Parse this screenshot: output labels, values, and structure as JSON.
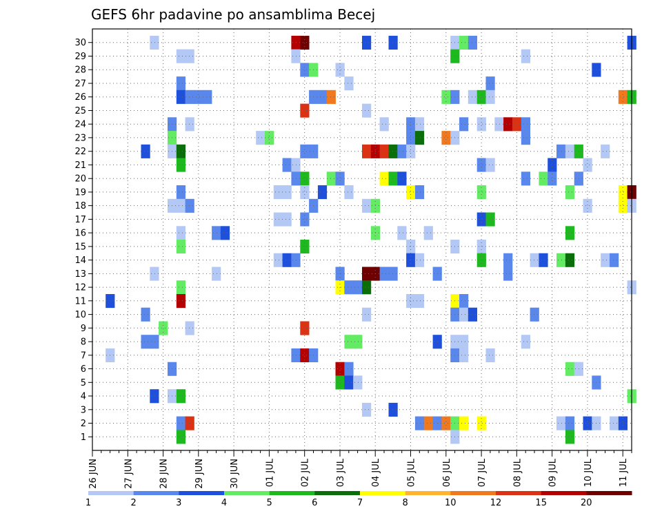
{
  "chart_data": {
    "type": "heatmap",
    "title": "GEFS 6hr padavine po ansamblima Becej",
    "xlabel": "",
    "ylabel": "",
    "x_start": "26 JUN",
    "x_step_hours": 6,
    "x_steps": 61,
    "x_tick_labels": [
      "26 JUN",
      "27 JUN",
      "28 JUN",
      "29 JUN",
      "30 JUN",
      "01 JUL",
      "02 JUL",
      "03 JUL",
      "04 JUL",
      "05 JUL",
      "06 JUL",
      "07 JUL",
      "08 JUL",
      "09 JUL",
      "10 JUL",
      "11 JUL"
    ],
    "y_range": [
      0,
      30
    ],
    "y_tick_labels": [
      "1",
      "2",
      "3",
      "4",
      "5",
      "6",
      "7",
      "8",
      "9",
      "10",
      "11",
      "12",
      "13",
      "14",
      "15",
      "16",
      "17",
      "18",
      "19",
      "20",
      "21",
      "22",
      "23",
      "24",
      "25",
      "26",
      "27",
      "28",
      "29",
      "30"
    ],
    "grid": true,
    "legend_position": "bottom",
    "color_scale": {
      "breaks": [
        "1",
        "2",
        "3",
        "4",
        "5",
        "6",
        "7",
        "8",
        "10",
        "12",
        "15",
        "20"
      ],
      "colors": [
        "#b4c8f5",
        "#5a87eb",
        "#1e50dc",
        "#64eb64",
        "#1eb91e",
        "#0a6e0a",
        "#ffff00",
        "#ffb432",
        "#f0781e",
        "#dc3214",
        "#b40000",
        "#6e0000"
      ]
    },
    "cells": [
      [
        30,
        7,
        1
      ],
      [
        30,
        23,
        11
      ],
      [
        30,
        24,
        12
      ],
      [
        30,
        31,
        3
      ],
      [
        30,
        34,
        3
      ],
      [
        30,
        41,
        1
      ],
      [
        30,
        42,
        4
      ],
      [
        30,
        43,
        2
      ],
      [
        30,
        61,
        3
      ],
      [
        29,
        10,
        1
      ],
      [
        29,
        11,
        1
      ],
      [
        29,
        23,
        1
      ],
      [
        29,
        41,
        5
      ],
      [
        29,
        49,
        1
      ],
      [
        28,
        24,
        2
      ],
      [
        28,
        25,
        4
      ],
      [
        28,
        28,
        1
      ],
      [
        28,
        57,
        3
      ],
      [
        27,
        10,
        2
      ],
      [
        27,
        29,
        1
      ],
      [
        27,
        45,
        2
      ],
      [
        26,
        10,
        3
      ],
      [
        26,
        11,
        2
      ],
      [
        26,
        12,
        2
      ],
      [
        26,
        13,
        2
      ],
      [
        26,
        25,
        2
      ],
      [
        26,
        26,
        2
      ],
      [
        26,
        27,
        9
      ],
      [
        26,
        40,
        4
      ],
      [
        26,
        41,
        2
      ],
      [
        26,
        43,
        1
      ],
      [
        26,
        44,
        5
      ],
      [
        26,
        45,
        1
      ],
      [
        26,
        60,
        9
      ],
      [
        26,
        61,
        5
      ],
      [
        25,
        24,
        10
      ],
      [
        25,
        31,
        1
      ],
      [
        24,
        9,
        2
      ],
      [
        24,
        11,
        1
      ],
      [
        24,
        33,
        1
      ],
      [
        24,
        36,
        2
      ],
      [
        24,
        37,
        1
      ],
      [
        24,
        42,
        2
      ],
      [
        24,
        44,
        1
      ],
      [
        24,
        46,
        1
      ],
      [
        24,
        47,
        11
      ],
      [
        24,
        48,
        10
      ],
      [
        24,
        49,
        2
      ],
      [
        23,
        9,
        4
      ],
      [
        23,
        19,
        1
      ],
      [
        23,
        20,
        4
      ],
      [
        23,
        36,
        2
      ],
      [
        23,
        37,
        6
      ],
      [
        23,
        40,
        9
      ],
      [
        23,
        41,
        1
      ],
      [
        23,
        49,
        2
      ],
      [
        22,
        6,
        3
      ],
      [
        22,
        9,
        1
      ],
      [
        22,
        10,
        6
      ],
      [
        22,
        24,
        2
      ],
      [
        22,
        25,
        2
      ],
      [
        22,
        31,
        10
      ],
      [
        22,
        32,
        11
      ],
      [
        22,
        33,
        10
      ],
      [
        22,
        34,
        6
      ],
      [
        22,
        35,
        2
      ],
      [
        22,
        36,
        1
      ],
      [
        22,
        53,
        2
      ],
      [
        22,
        54,
        1
      ],
      [
        22,
        55,
        5
      ],
      [
        22,
        58,
        1
      ],
      [
        21,
        10,
        5
      ],
      [
        21,
        22,
        2
      ],
      [
        21,
        23,
        1
      ],
      [
        21,
        44,
        2
      ],
      [
        21,
        45,
        1
      ],
      [
        21,
        52,
        3
      ],
      [
        21,
        56,
        1
      ],
      [
        20,
        23,
        2
      ],
      [
        20,
        24,
        5
      ],
      [
        20,
        27,
        4
      ],
      [
        20,
        28,
        2
      ],
      [
        20,
        33,
        7
      ],
      [
        20,
        34,
        5
      ],
      [
        20,
        35,
        3
      ],
      [
        20,
        49,
        2
      ],
      [
        20,
        51,
        4
      ],
      [
        20,
        52,
        2
      ],
      [
        20,
        55,
        2
      ],
      [
        19,
        10,
        2
      ],
      [
        19,
        21,
        1
      ],
      [
        19,
        22,
        1
      ],
      [
        19,
        24,
        1
      ],
      [
        19,
        26,
        3
      ],
      [
        19,
        29,
        1
      ],
      [
        19,
        36,
        7
      ],
      [
        19,
        37,
        2
      ],
      [
        19,
        44,
        4
      ],
      [
        19,
        54,
        4
      ],
      [
        19,
        60,
        7
      ],
      [
        19,
        61,
        12
      ],
      [
        18,
        9,
        1
      ],
      [
        18,
        10,
        1
      ],
      [
        18,
        11,
        2
      ],
      [
        18,
        25,
        2
      ],
      [
        18,
        31,
        1
      ],
      [
        18,
        32,
        4
      ],
      [
        18,
        56,
        1
      ],
      [
        18,
        60,
        7
      ],
      [
        18,
        61,
        1
      ],
      [
        17,
        21,
        1
      ],
      [
        17,
        22,
        1
      ],
      [
        17,
        24,
        2
      ],
      [
        17,
        44,
        3
      ],
      [
        17,
        45,
        5
      ],
      [
        16,
        10,
        1
      ],
      [
        16,
        14,
        2
      ],
      [
        16,
        15,
        3
      ],
      [
        16,
        32,
        4
      ],
      [
        16,
        35,
        1
      ],
      [
        16,
        38,
        1
      ],
      [
        16,
        54,
        5
      ],
      [
        15,
        10,
        4
      ],
      [
        15,
        24,
        5
      ],
      [
        15,
        36,
        1
      ],
      [
        15,
        41,
        1
      ],
      [
        15,
        44,
        1
      ],
      [
        14,
        21,
        1
      ],
      [
        14,
        22,
        3
      ],
      [
        14,
        23,
        2
      ],
      [
        14,
        36,
        3
      ],
      [
        14,
        37,
        1
      ],
      [
        14,
        44,
        5
      ],
      [
        14,
        47,
        2
      ],
      [
        14,
        50,
        1
      ],
      [
        14,
        51,
        3
      ],
      [
        14,
        53,
        4
      ],
      [
        14,
        54,
        6
      ],
      [
        14,
        58,
        1
      ],
      [
        14,
        59,
        2
      ],
      [
        13,
        7,
        1
      ],
      [
        13,
        14,
        1
      ],
      [
        13,
        28,
        2
      ],
      [
        13,
        31,
        12
      ],
      [
        13,
        32,
        12
      ],
      [
        13,
        33,
        2
      ],
      [
        13,
        34,
        2
      ],
      [
        13,
        39,
        2
      ],
      [
        13,
        47,
        2
      ],
      [
        12,
        10,
        4
      ],
      [
        12,
        28,
        7
      ],
      [
        12,
        29,
        2
      ],
      [
        12,
        30,
        2
      ],
      [
        12,
        31,
        6
      ],
      [
        12,
        61,
        1
      ],
      [
        11,
        2,
        3
      ],
      [
        11,
        10,
        11
      ],
      [
        11,
        36,
        1
      ],
      [
        11,
        37,
        1
      ],
      [
        11,
        41,
        7
      ],
      [
        11,
        42,
        2
      ],
      [
        10,
        6,
        2
      ],
      [
        10,
        31,
        1
      ],
      [
        10,
        41,
        2
      ],
      [
        10,
        42,
        1
      ],
      [
        10,
        43,
        3
      ],
      [
        10,
        50,
        2
      ],
      [
        9,
        8,
        4
      ],
      [
        9,
        11,
        1
      ],
      [
        9,
        24,
        10
      ],
      [
        8,
        6,
        2
      ],
      [
        8,
        7,
        2
      ],
      [
        8,
        29,
        4
      ],
      [
        8,
        30,
        4
      ],
      [
        8,
        39,
        3
      ],
      [
        8,
        41,
        1
      ],
      [
        8,
        42,
        1
      ],
      [
        8,
        49,
        1
      ],
      [
        7,
        2,
        1
      ],
      [
        7,
        23,
        2
      ],
      [
        7,
        24,
        11
      ],
      [
        7,
        25,
        2
      ],
      [
        7,
        41,
        2
      ],
      [
        7,
        42,
        1
      ],
      [
        7,
        45,
        1
      ],
      [
        6,
        9,
        2
      ],
      [
        6,
        28,
        11
      ],
      [
        6,
        29,
        2
      ],
      [
        6,
        54,
        4
      ],
      [
        6,
        55,
        1
      ],
      [
        5,
        28,
        5
      ],
      [
        5,
        29,
        3
      ],
      [
        5,
        30,
        1
      ],
      [
        5,
        57,
        2
      ],
      [
        4,
        7,
        3
      ],
      [
        4,
        9,
        1
      ],
      [
        4,
        10,
        5
      ],
      [
        4,
        61,
        4
      ],
      [
        3,
        31,
        1
      ],
      [
        3,
        34,
        3
      ],
      [
        2,
        10,
        2
      ],
      [
        2,
        11,
        10
      ],
      [
        2,
        37,
        2
      ],
      [
        2,
        38,
        9
      ],
      [
        2,
        39,
        2
      ],
      [
        2,
        40,
        9
      ],
      [
        2,
        41,
        4
      ],
      [
        2,
        42,
        7
      ],
      [
        2,
        44,
        7
      ],
      [
        2,
        53,
        1
      ],
      [
        2,
        54,
        2
      ],
      [
        2,
        56,
        3
      ],
      [
        2,
        57,
        1
      ],
      [
        2,
        59,
        1
      ],
      [
        2,
        60,
        3
      ],
      [
        1,
        10,
        5
      ],
      [
        1,
        41,
        1
      ],
      [
        1,
        54,
        5
      ]
    ]
  }
}
